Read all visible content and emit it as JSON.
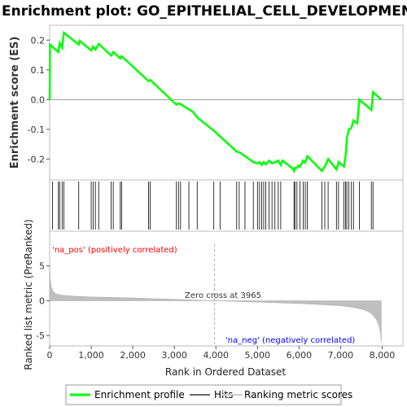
{
  "chart_data": {
    "type": "line",
    "title": "Enrichment plot: GO_EPITHELIAL_CELL_DEVELOPMENT",
    "top_panel": {
      "ylabel": "Enrichment score (ES)",
      "ylim": [
        -0.27,
        0.25
      ],
      "yticks": [
        -0.2,
        -0.1,
        0.0,
        0.1,
        0.2
      ],
      "ytick_labels": [
        "-0.2",
        "-0.1",
        "0.0",
        "0.1",
        "0.2"
      ],
      "series_color": "#00ff00",
      "enrichment_profile": [
        [
          0,
          0.0
        ],
        [
          5,
          0.185
        ],
        [
          210,
          0.16
        ],
        [
          240,
          0.19
        ],
        [
          300,
          0.175
        ],
        [
          340,
          0.225
        ],
        [
          700,
          0.185
        ],
        [
          720,
          0.198
        ],
        [
          1000,
          0.165
        ],
        [
          1040,
          0.178
        ],
        [
          1100,
          0.168
        ],
        [
          1180,
          0.187
        ],
        [
          1480,
          0.148
        ],
        [
          1530,
          0.16
        ],
        [
          1700,
          0.138
        ],
        [
          1730,
          0.146
        ],
        [
          2380,
          0.062
        ],
        [
          2420,
          0.066
        ],
        [
          3050,
          -0.017
        ],
        [
          3100,
          -0.013
        ],
        [
          3150,
          -0.015
        ],
        [
          3450,
          -0.042
        ],
        [
          3550,
          -0.06
        ],
        [
          3950,
          -0.105
        ],
        [
          4500,
          -0.175
        ],
        [
          4560,
          -0.177
        ],
        [
          4700,
          -0.19
        ],
        [
          4900,
          -0.21
        ],
        [
          5000,
          -0.215
        ],
        [
          5050,
          -0.21
        ],
        [
          5100,
          -0.22
        ],
        [
          5150,
          -0.21
        ],
        [
          5200,
          -0.218
        ],
        [
          5280,
          -0.205
        ],
        [
          5350,
          -0.215
        ],
        [
          5420,
          -0.21
        ],
        [
          5500,
          -0.205
        ],
        [
          5560,
          -0.22
        ],
        [
          5600,
          -0.205
        ],
        [
          5850,
          -0.232
        ],
        [
          5880,
          -0.24
        ],
        [
          5900,
          -0.23
        ],
        [
          5950,
          -0.23
        ],
        [
          5980,
          -0.222
        ],
        [
          6020,
          -0.226
        ],
        [
          6100,
          -0.205
        ],
        [
          6150,
          -0.212
        ],
        [
          6200,
          -0.19
        ],
        [
          6550,
          -0.24
        ],
        [
          6620,
          -0.225
        ],
        [
          6700,
          -0.2
        ],
        [
          6900,
          -0.235
        ],
        [
          6950,
          -0.21
        ],
        [
          7080,
          -0.225
        ],
        [
          7120,
          -0.19
        ],
        [
          7150,
          -0.13
        ],
        [
          7200,
          -0.1
        ],
        [
          7260,
          -0.095
        ],
        [
          7310,
          -0.07
        ],
        [
          7400,
          -0.08
        ],
        [
          7450,
          0.0
        ],
        [
          7740,
          -0.035
        ],
        [
          7780,
          0.025
        ],
        [
          7980,
          0.0
        ]
      ],
      "hits": [
        70,
        210,
        240,
        300,
        340,
        700,
        1000,
        1050,
        1100,
        1180,
        1480,
        1530,
        1700,
        1730,
        2380,
        2420,
        3050,
        3100,
        3150,
        3350,
        3550,
        3950,
        4100,
        4500,
        4560,
        4700,
        4900,
        5000,
        5050,
        5100,
        5150,
        5200,
        5280,
        5350,
        5420,
        5500,
        5560,
        5880,
        5900,
        5950,
        6020,
        6100,
        6150,
        6200,
        6550,
        6620,
        6700,
        6900,
        6950,
        7080,
        7120,
        7150,
        7200,
        7260,
        7310,
        7450,
        7740,
        7780
      ]
    },
    "bottom_panel": {
      "ylabel": "Ranked list metric (PreRanked)",
      "ylim": [
        -6.5,
        10
      ],
      "yticks": [
        -5,
        0,
        5
      ],
      "ytick_labels": [
        "-5",
        "0",
        "5"
      ],
      "metric_profile": [
        [
          0,
          5.2
        ],
        [
          15,
          3.0
        ],
        [
          40,
          2.0
        ],
        [
          80,
          1.4
        ],
        [
          150,
          1.0
        ],
        [
          300,
          0.8
        ],
        [
          600,
          0.65
        ],
        [
          1000,
          0.55
        ],
        [
          1500,
          0.47
        ],
        [
          2000,
          0.4
        ],
        [
          2500,
          0.3
        ],
        [
          3000,
          0.2
        ],
        [
          3500,
          0.1
        ],
        [
          3965,
          0.0
        ],
        [
          4500,
          -0.1
        ],
        [
          5000,
          -0.2
        ],
        [
          5500,
          -0.3
        ],
        [
          6000,
          -0.4
        ],
        [
          6500,
          -0.55
        ],
        [
          7000,
          -0.72
        ],
        [
          7300,
          -0.95
        ],
        [
          7500,
          -1.2
        ],
        [
          7650,
          -1.5
        ],
        [
          7750,
          -1.9
        ],
        [
          7850,
          -2.6
        ],
        [
          7920,
          -3.5
        ],
        [
          7960,
          -4.6
        ],
        [
          7980,
          -6.0
        ]
      ],
      "zero_cross_label": "Zero cross at 3965",
      "zero_cross": 3965,
      "pos_label": "'na_pos' (positively correlated)",
      "neg_label": "'na_neg' (negatively correlated)",
      "pos_color": "#ff0000",
      "neg_color": "#0000ff"
    },
    "xlabel": "Rank in Ordered Dataset",
    "xlim": [
      0,
      8500
    ],
    "xticks": [
      0,
      1000,
      2000,
      3000,
      4000,
      5000,
      6000,
      7000,
      8000
    ],
    "xtick_labels": [
      "0",
      "1,000",
      "2,000",
      "3,000",
      "4,000",
      "5,000",
      "6,000",
      "7,000",
      "8,000"
    ],
    "n_genes": 7980,
    "heatmap_segments": [
      {
        "from": 0,
        "to": 1300,
        "color": "#f24a52"
      },
      {
        "from": 1300,
        "to": 2150,
        "color": "#f47474"
      },
      {
        "from": 2150,
        "to": 3000,
        "color": "#f7a2a2"
      },
      {
        "from": 3000,
        "to": 3900,
        "color": "#f9c8e6"
      },
      {
        "from": 3900,
        "to": 4000,
        "color": "#f2e8f2"
      },
      {
        "from": 4000,
        "to": 5000,
        "color": "#dcdcfa"
      },
      {
        "from": 5000,
        "to": 5900,
        "color": "#c3c3f5"
      },
      {
        "from": 5900,
        "to": 6450,
        "color": "#8a8aef"
      },
      {
        "from": 6450,
        "to": 7650,
        "color": "#4d46e0"
      },
      {
        "from": 7650,
        "to": 7980,
        "color": "#1a00c8"
      }
    ],
    "legend": {
      "placement": "bottom",
      "items": [
        {
          "label": "Enrichment profile",
          "color": "#00ff00",
          "icon": "line-swatch"
        },
        {
          "label": "Hits",
          "color": "#666666",
          "icon": "line-swatch"
        },
        {
          "label": "Ranking metric scores",
          "color": "#cccccc",
          "icon": "line-swatch"
        }
      ]
    }
  }
}
